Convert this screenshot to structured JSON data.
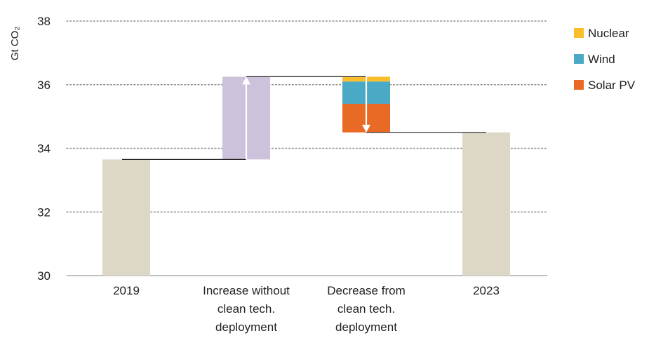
{
  "chart_data": {
    "type": "bar",
    "subtype": "waterfall",
    "ylabel": "Gt CO₂",
    "ylim": [
      30,
      38
    ],
    "yticks": [
      30,
      32,
      34,
      36,
      38
    ],
    "y_tick_labels": [
      "30",
      "32",
      "34",
      "36",
      "38"
    ],
    "grid": true,
    "legend_position": "top-right",
    "categories": [
      {
        "key": "y2019",
        "lines": [
          "2019"
        ]
      },
      {
        "key": "increase",
        "lines": [
          "Increase without",
          "clean tech.",
          "deployment"
        ]
      },
      {
        "key": "decrease",
        "lines": [
          "Decrease from",
          "clean tech.",
          "deployment"
        ]
      },
      {
        "key": "y2023",
        "lines": [
          "2023"
        ]
      }
    ],
    "bars": [
      {
        "category": "y2019",
        "kind": "total",
        "from": 30,
        "to": 33.65,
        "color": "#ddd8c6"
      },
      {
        "category": "increase",
        "kind": "increase",
        "from": 33.65,
        "to": 36.25,
        "color": "#ccc2dc"
      },
      {
        "category": "decrease",
        "kind": "decrease",
        "segments": [
          {
            "series": "Solar PV",
            "from": 34.5,
            "to": 35.4
          },
          {
            "series": "Wind",
            "from": 35.4,
            "to": 36.1
          },
          {
            "series": "Nuclear",
            "from": 36.1,
            "to": 36.25
          }
        ]
      },
      {
        "category": "y2023",
        "kind": "total",
        "from": 30,
        "to": 34.5,
        "color": "#ddd8c6"
      }
    ],
    "series": [
      {
        "name": "Nuclear",
        "color": "#f9be2a"
      },
      {
        "name": "Wind",
        "color": "#4aaac6"
      },
      {
        "name": "Solar PV",
        "color": "#e96a24"
      }
    ]
  }
}
